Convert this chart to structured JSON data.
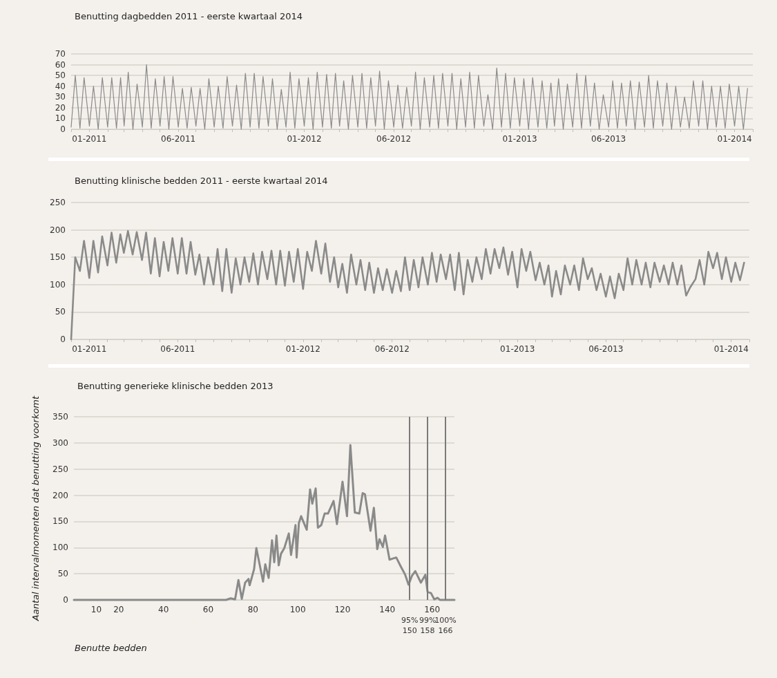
{
  "chart_data": [
    {
      "type": "line",
      "title": "Benutting dagbedden 2011 - eerste kwartaal 2014",
      "grid": "y",
      "marker": "none",
      "line_style": "solid",
      "xlim": [
        "2010-12-01",
        "2014-02-01"
      ],
      "ylim": [
        0,
        70
      ],
      "yticks": [
        0,
        10,
        20,
        30,
        40,
        50,
        60,
        70
      ],
      "xticks": [
        {
          "value": "2010-12",
          "label": null
        },
        {
          "value": "2011-01",
          "label": "01-2011"
        },
        {
          "value": "2011-02",
          "label": null
        },
        {
          "value": "2011-03",
          "label": null
        },
        {
          "value": "2011-04",
          "label": null
        },
        {
          "value": "2011-05",
          "label": null
        },
        {
          "value": "2011-06",
          "label": "06-2011"
        },
        {
          "value": "2011-07",
          "label": null
        },
        {
          "value": "2011-08",
          "label": null
        },
        {
          "value": "2011-09",
          "label": null
        },
        {
          "value": "2011-10",
          "label": null
        },
        {
          "value": "2011-11",
          "label": null
        },
        {
          "value": "2011-12",
          "label": null
        },
        {
          "value": "2012-01",
          "label": "01-2012"
        },
        {
          "value": "2012-02",
          "label": null
        },
        {
          "value": "2012-03",
          "label": null
        },
        {
          "value": "2012-04",
          "label": null
        },
        {
          "value": "2012-05",
          "label": null
        },
        {
          "value": "2012-06",
          "label": "06-2012"
        },
        {
          "value": "2012-07",
          "label": null
        },
        {
          "value": "2012-08",
          "label": null
        },
        {
          "value": "2012-09",
          "label": null
        },
        {
          "value": "2012-10",
          "label": null
        },
        {
          "value": "2012-11",
          "label": null
        },
        {
          "value": "2012-12",
          "label": null
        },
        {
          "value": "2013-01",
          "label": "01-2013"
        },
        {
          "value": "2013-02",
          "label": null
        },
        {
          "value": "2013-03",
          "label": null
        },
        {
          "value": "2013-04",
          "label": null
        },
        {
          "value": "2013-05",
          "label": null
        },
        {
          "value": "2013-06",
          "label": "06-2013"
        },
        {
          "value": "2013-07",
          "label": null
        },
        {
          "value": "2013-08",
          "label": null
        },
        {
          "value": "2013-09",
          "label": null
        },
        {
          "value": "2013-10",
          "label": null
        },
        {
          "value": "2013-11",
          "label": null
        },
        {
          "value": "2013-12",
          "label": null
        },
        {
          "value": "2014-01",
          "label": "01-2014"
        },
        {
          "value": "2014-02",
          "label": null
        }
      ],
      "x": [
        "2010-12-01",
        "2010-12-08",
        "2010-12-16",
        "2010-12-23",
        "2011-01-01",
        "2011-01-08",
        "2011-01-16",
        "2011-01-23",
        "2011-02-01",
        "2011-02-08",
        "2011-02-16",
        "2011-02-23",
        "2011-03-01",
        "2011-03-08",
        "2011-03-16",
        "2011-03-23",
        "2011-04-01",
        "2011-04-08",
        "2011-04-16",
        "2011-04-23",
        "2011-05-01",
        "2011-05-08",
        "2011-05-16",
        "2011-05-23",
        "2011-06-01",
        "2011-06-08",
        "2011-06-16",
        "2011-06-23",
        "2011-07-01",
        "2011-07-08",
        "2011-07-16",
        "2011-07-23",
        "2011-08-01",
        "2011-08-08",
        "2011-08-16",
        "2011-08-23",
        "2011-09-01",
        "2011-09-08",
        "2011-09-16",
        "2011-09-23",
        "2011-10-01",
        "2011-10-08",
        "2011-10-16",
        "2011-10-23",
        "2011-11-01",
        "2011-11-08",
        "2011-11-16",
        "2011-11-23",
        "2011-12-01",
        "2011-12-08",
        "2011-12-16",
        "2011-12-23",
        "2012-01-01",
        "2012-01-08",
        "2012-01-16",
        "2012-01-23",
        "2012-02-01",
        "2012-02-08",
        "2012-02-16",
        "2012-02-23",
        "2012-03-01",
        "2012-03-08",
        "2012-03-16",
        "2012-03-23",
        "2012-04-01",
        "2012-04-08",
        "2012-04-16",
        "2012-04-23",
        "2012-05-01",
        "2012-05-08",
        "2012-05-16",
        "2012-05-23",
        "2012-06-01",
        "2012-06-08",
        "2012-06-16",
        "2012-06-23",
        "2012-07-01",
        "2012-07-08",
        "2012-07-16",
        "2012-07-23",
        "2012-08-01",
        "2012-08-08",
        "2012-08-16",
        "2012-08-23",
        "2012-09-01",
        "2012-09-08",
        "2012-09-16",
        "2012-09-23",
        "2012-10-01",
        "2012-10-08",
        "2012-10-16",
        "2012-10-23",
        "2012-11-01",
        "2012-11-08",
        "2012-11-16",
        "2012-11-23",
        "2012-12-01",
        "2012-12-08",
        "2012-12-16",
        "2012-12-23",
        "2013-01-01",
        "2013-01-08",
        "2013-01-16",
        "2013-01-23",
        "2013-02-01",
        "2013-02-08",
        "2013-02-16",
        "2013-02-23",
        "2013-03-01",
        "2013-03-08",
        "2013-03-16",
        "2013-03-23",
        "2013-04-01",
        "2013-04-08",
        "2013-04-16",
        "2013-04-23",
        "2013-05-01",
        "2013-05-08",
        "2013-05-16",
        "2013-05-23",
        "2013-06-01",
        "2013-06-08",
        "2013-06-16",
        "2013-06-23",
        "2013-07-01",
        "2013-07-08",
        "2013-07-16",
        "2013-07-23",
        "2013-08-01",
        "2013-08-08",
        "2013-08-16",
        "2013-08-23",
        "2013-09-01",
        "2013-09-08",
        "2013-09-16",
        "2013-09-23",
        "2013-10-01",
        "2013-10-08",
        "2013-10-16",
        "2013-10-23",
        "2013-11-01",
        "2013-11-08",
        "2013-11-16",
        "2013-11-23",
        "2013-12-01",
        "2013-12-08",
        "2013-12-16",
        "2013-12-23",
        "2014-01-01",
        "2014-01-08",
        "2014-01-16",
        "2014-01-23"
      ],
      "series": [
        {
          "color": "#8a8a8a",
          "values": [
            2,
            50,
            1,
            48,
            3,
            40,
            0,
            48,
            2,
            48,
            1,
            48,
            3,
            53,
            0,
            42,
            2,
            60,
            1,
            47,
            3,
            49,
            0,
            49,
            2,
            38,
            1,
            39,
            3,
            38,
            0,
            47,
            2,
            40,
            1,
            49,
            3,
            41,
            0,
            52,
            2,
            52,
            1,
            49,
            3,
            47,
            0,
            37,
            2,
            53,
            1,
            47,
            3,
            48,
            0,
            53,
            2,
            51,
            1,
            52,
            3,
            45,
            0,
            50,
            2,
            52,
            1,
            48,
            3,
            54,
            0,
            45,
            2,
            41,
            1,
            39,
            3,
            53,
            0,
            48,
            2,
            50,
            1,
            52,
            3,
            52,
            0,
            47,
            2,
            53,
            1,
            50,
            3,
            32,
            0,
            57,
            2,
            52,
            1,
            48,
            3,
            47,
            0,
            48,
            2,
            45,
            1,
            43,
            3,
            47,
            0,
            42,
            2,
            52,
            1,
            50,
            3,
            43,
            0,
            32,
            2,
            45,
            1,
            43,
            3,
            45,
            0,
            44,
            2,
            50,
            1,
            45,
            3,
            43,
            0,
            40,
            2,
            30,
            1,
            45,
            3,
            45,
            0,
            40,
            2,
            40,
            1,
            42,
            3,
            40,
            0,
            38
          ]
        }
      ]
    },
    {
      "type": "line",
      "title": "Benutting klinische bedden 2011 - eerste kwartaal 2014",
      "grid": "y",
      "marker": "none",
      "line_style": "solid",
      "xlim": [
        "2010-12-01",
        "2014-02-01"
      ],
      "ylim": [
        0,
        250
      ],
      "yticks": [
        0,
        50,
        100,
        150,
        200,
        250
      ],
      "xticks": [
        {
          "value": "2010-12",
          "label": null
        },
        {
          "value": "2011-01",
          "label": "01-2011"
        },
        {
          "value": "2011-02",
          "label": null
        },
        {
          "value": "2011-03",
          "label": null
        },
        {
          "value": "2011-04",
          "label": null
        },
        {
          "value": "2011-05",
          "label": null
        },
        {
          "value": "2011-06",
          "label": "06-2011"
        },
        {
          "value": "2011-07",
          "label": null
        },
        {
          "value": "2011-08",
          "label": null
        },
        {
          "value": "2011-09",
          "label": null
        },
        {
          "value": "2011-10",
          "label": null
        },
        {
          "value": "2011-11",
          "label": null
        },
        {
          "value": "2011-12",
          "label": null
        },
        {
          "value": "2012-01",
          "label": "01-2012"
        },
        {
          "value": "2012-02",
          "label": null
        },
        {
          "value": "2012-03",
          "label": null
        },
        {
          "value": "2012-04",
          "label": null
        },
        {
          "value": "2012-05",
          "label": null
        },
        {
          "value": "2012-06",
          "label": "06-2012"
        },
        {
          "value": "2012-07",
          "label": null
        },
        {
          "value": "2012-08",
          "label": null
        },
        {
          "value": "2012-09",
          "label": null
        },
        {
          "value": "2012-10",
          "label": null
        },
        {
          "value": "2012-11",
          "label": null
        },
        {
          "value": "2012-12",
          "label": null
        },
        {
          "value": "2013-01",
          "label": "01-2013"
        },
        {
          "value": "2013-02",
          "label": null
        },
        {
          "value": "2013-03",
          "label": null
        },
        {
          "value": "2013-04",
          "label": null
        },
        {
          "value": "2013-05",
          "label": null
        },
        {
          "value": "2013-06",
          "label": "06-2013"
        },
        {
          "value": "2013-07",
          "label": null
        },
        {
          "value": "2013-08",
          "label": null
        },
        {
          "value": "2013-09",
          "label": null
        },
        {
          "value": "2013-10",
          "label": null
        },
        {
          "value": "2013-11",
          "label": null
        },
        {
          "value": "2013-12",
          "label": null
        },
        {
          "value": "2014-01",
          "label": "01-2014"
        },
        {
          "value": "2014-02",
          "label": null
        }
      ],
      "x": [
        "2010-12-01",
        "2010-12-08",
        "2010-12-16",
        "2010-12-23",
        "2011-01-01",
        "2011-01-08",
        "2011-01-16",
        "2011-01-23",
        "2011-02-01",
        "2011-02-08",
        "2011-02-16",
        "2011-02-23",
        "2011-03-01",
        "2011-03-08",
        "2011-03-16",
        "2011-03-23",
        "2011-04-01",
        "2011-04-08",
        "2011-04-16",
        "2011-04-23",
        "2011-05-01",
        "2011-05-08",
        "2011-05-16",
        "2011-05-23",
        "2011-06-01",
        "2011-06-08",
        "2011-06-16",
        "2011-06-23",
        "2011-07-01",
        "2011-07-08",
        "2011-07-16",
        "2011-07-23",
        "2011-08-01",
        "2011-08-08",
        "2011-08-16",
        "2011-08-23",
        "2011-09-01",
        "2011-09-08",
        "2011-09-16",
        "2011-09-23",
        "2011-10-01",
        "2011-10-08",
        "2011-10-16",
        "2011-10-23",
        "2011-11-01",
        "2011-11-08",
        "2011-11-16",
        "2011-11-23",
        "2011-12-01",
        "2011-12-08",
        "2011-12-16",
        "2011-12-23",
        "2012-01-01",
        "2012-01-08",
        "2012-01-16",
        "2012-01-23",
        "2012-02-01",
        "2012-02-08",
        "2012-02-16",
        "2012-02-23",
        "2012-03-01",
        "2012-03-08",
        "2012-03-16",
        "2012-03-23",
        "2012-04-01",
        "2012-04-08",
        "2012-04-16",
        "2012-04-23",
        "2012-05-01",
        "2012-05-08",
        "2012-05-16",
        "2012-05-23",
        "2012-06-01",
        "2012-06-08",
        "2012-06-16",
        "2012-06-23",
        "2012-07-01",
        "2012-07-08",
        "2012-07-16",
        "2012-07-23",
        "2012-08-01",
        "2012-08-08",
        "2012-08-16",
        "2012-08-23",
        "2012-09-01",
        "2012-09-08",
        "2012-09-16",
        "2012-09-23",
        "2012-10-01",
        "2012-10-08",
        "2012-10-16",
        "2012-10-23",
        "2012-11-01",
        "2012-11-08",
        "2012-11-16",
        "2012-11-23",
        "2012-12-01",
        "2012-12-08",
        "2012-12-16",
        "2012-12-23",
        "2013-01-01",
        "2013-01-08",
        "2013-01-16",
        "2013-01-23",
        "2013-02-01",
        "2013-02-08",
        "2013-02-16",
        "2013-02-23",
        "2013-03-01",
        "2013-03-08",
        "2013-03-16",
        "2013-03-23",
        "2013-04-01",
        "2013-04-08",
        "2013-04-16",
        "2013-04-23",
        "2013-05-01",
        "2013-05-08",
        "2013-05-16",
        "2013-05-23",
        "2013-06-01",
        "2013-06-08",
        "2013-06-16",
        "2013-06-23",
        "2013-07-01",
        "2013-07-08",
        "2013-07-16",
        "2013-07-23",
        "2013-08-01",
        "2013-08-08",
        "2013-08-16",
        "2013-08-23",
        "2013-09-01",
        "2013-09-08",
        "2013-09-16",
        "2013-09-23",
        "2013-10-01",
        "2013-10-08",
        "2013-10-16",
        "2013-10-23",
        "2013-11-01",
        "2013-11-08",
        "2013-11-16",
        "2013-11-23",
        "2013-12-01",
        "2013-12-08",
        "2013-12-16",
        "2013-12-23",
        "2014-01-01",
        "2014-01-08",
        "2014-01-16",
        "2014-01-23"
      ],
      "series": [
        {
          "color": "#8a8a8a",
          "values": [
            0,
            150,
            125,
            180,
            112,
            180,
            122,
            188,
            135,
            195,
            140,
            192,
            158,
            198,
            155,
            196,
            145,
            195,
            120,
            185,
            115,
            178,
            125,
            185,
            120,
            185,
            120,
            178,
            118,
            155,
            100,
            150,
            100,
            165,
            88,
            165,
            85,
            148,
            100,
            150,
            105,
            157,
            100,
            160,
            110,
            162,
            100,
            162,
            98,
            160,
            105,
            165,
            92,
            160,
            125,
            180,
            120,
            175,
            105,
            150,
            95,
            138,
            85,
            155,
            100,
            145,
            90,
            140,
            85,
            130,
            90,
            128,
            85,
            125,
            88,
            150,
            90,
            145,
            95,
            150,
            100,
            158,
            105,
            155,
            110,
            155,
            90,
            158,
            82,
            145,
            105,
            150,
            110,
            165,
            120,
            165,
            130,
            168,
            118,
            160,
            95,
            165,
            125,
            160,
            108,
            140,
            100,
            135,
            78,
            125,
            82,
            135,
            100,
            135,
            90,
            148,
            110,
            130,
            90,
            120,
            78,
            115,
            75,
            120,
            90,
            148,
            100,
            145,
            100,
            140,
            95,
            140,
            105,
            135,
            100,
            140,
            100,
            135,
            80,
            95,
            110,
            145,
            100,
            160,
            130,
            158,
            110,
            150,
            105,
            140,
            108,
            140
          ]
        }
      ]
    },
    {
      "type": "line",
      "title": "Benutting generieke klinische bedden 2013",
      "xlabel": "Benutte bedden",
      "ylabel": "Aantal intervalmomenten dat benutting voorkomt",
      "grid": "y",
      "marker": "none",
      "line_style": "solid",
      "xlim": [
        0,
        170
      ],
      "xticks": [
        10,
        20,
        40,
        60,
        80,
        100,
        120,
        140,
        160
      ],
      "ylim": [
        0,
        350
      ],
      "yticks": [
        0,
        50,
        100,
        150,
        200,
        250,
        300,
        350
      ],
      "x": [
        0,
        68,
        70,
        72,
        73.5,
        75,
        76.5,
        78,
        78.5,
        80.5,
        81.5,
        84.5,
        85.5,
        87,
        88.5,
        89.5,
        90.5,
        91.5,
        92.5,
        94,
        96,
        97,
        99,
        99.5,
        100.5,
        101.5,
        104,
        105.5,
        106.5,
        108,
        109,
        110.5,
        112,
        113.5,
        116,
        117.5,
        120,
        122,
        123.5,
        125.5,
        127.5,
        129,
        130,
        132.5,
        134,
        135.5,
        136.5,
        138,
        139,
        141,
        142.5,
        144,
        146,
        148,
        149.5,
        151,
        152.5,
        155,
        157,
        158,
        159.5,
        161,
        162.5,
        163.5,
        170
      ],
      "series": [
        {
          "color": "#8a8a8a",
          "values": [
            0,
            0,
            3,
            1,
            38,
            2,
            33,
            40,
            28,
            59,
            99,
            35,
            68,
            42,
            114,
            72,
            123,
            66,
            88,
            99,
            127,
            86,
            143,
            81,
            147,
            160,
            134,
            211,
            184,
            213,
            138,
            143,
            165,
            165,
            189,
            145,
            226,
            160,
            296,
            167,
            165,
            204,
            202,
            132,
            176,
            97,
            116,
            101,
            123,
            77,
            79,
            81,
            64,
            48,
            29,
            46,
            55,
            33,
            48,
            15,
            13,
            1,
            4,
            0,
            0
          ]
        }
      ],
      "ref_lines": [
        {
          "axis": "x",
          "value": 150,
          "label": "95%\n150",
          "color": "#7a7a7a"
        },
        {
          "axis": "x",
          "value": 158,
          "label": "99%\n158",
          "color": "#7a7a7a"
        },
        {
          "axis": "x",
          "value": 166,
          "label": "100%\n166",
          "color": "#7a7a7a"
        }
      ]
    }
  ]
}
